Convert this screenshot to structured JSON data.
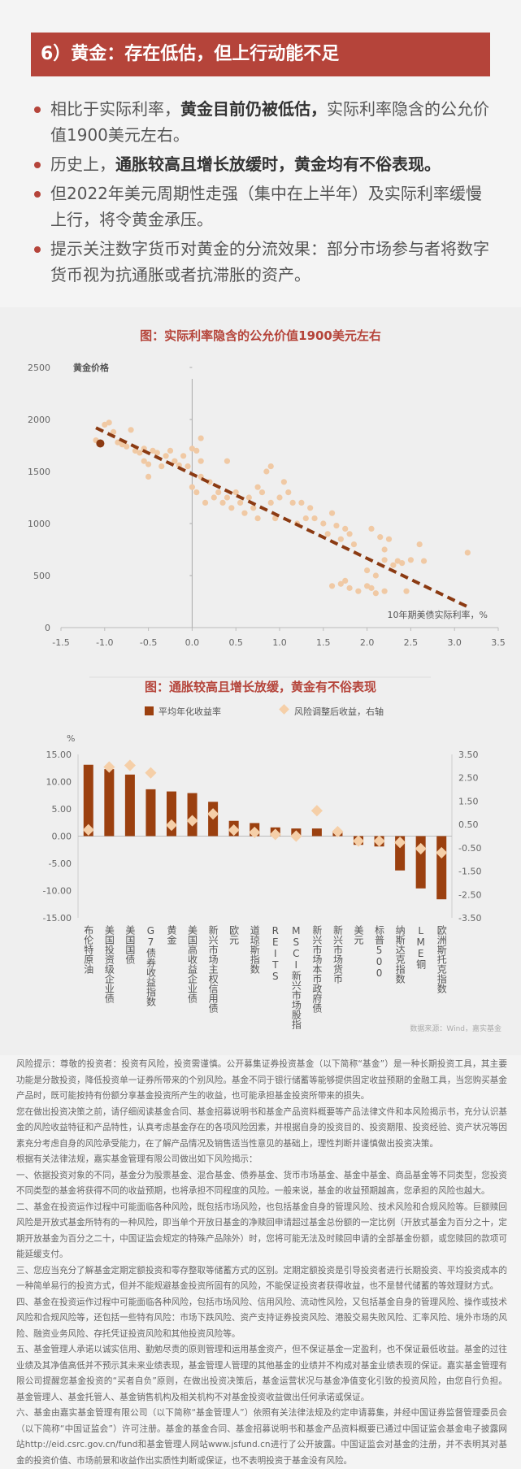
{
  "header": {
    "title": "6）黄金：存在低估，但上行动能不足"
  },
  "bullets": [
    {
      "pre": "相比于实际利率，",
      "bold": "黄金目前仍被低估，",
      "post": "实际利率隐含的公允价值1900美元左右。"
    },
    {
      "pre": "历史上，",
      "bold": "通胀较高且增长放缓时，黄金均有不俗表现。",
      "post": ""
    },
    {
      "pre": "但2022年美元周期性走强（集中在上半年）及实际利率缓慢上行，将令黄金承压。",
      "bold": "",
      "post": ""
    },
    {
      "pre": "提示关注数字货币对黄金的分流效果：部分市场参与者将数字货币视为抗通胀或者抗滞胀的资产。",
      "bold": "",
      "post": ""
    }
  ],
  "chart_data": [
    {
      "type": "scatter",
      "title": "图：实际利率隐含的公允价值1900美元左右",
      "xlabel": "10年期美债实际利率，%",
      "ylabel": "黄金价格",
      "xlim": [
        -1.5,
        3.5
      ],
      "ylim": [
        0,
        2500
      ],
      "xticks": [
        "-1.5",
        "-1.0",
        "-0.5",
        "0.0",
        "0.5",
        "1.0",
        "1.5",
        "2.0",
        "2.5",
        "3.0",
        "3.5"
      ],
      "yticks": [
        "0",
        "500",
        "1000",
        "1500",
        "2000",
        "2500"
      ],
      "colors": {
        "points": "#f0c9a4",
        "highlight": "#8b3a12",
        "trend": "#8b3a12"
      },
      "highlight": [
        -1.05,
        1770
      ],
      "trend": [
        [
          -1.1,
          1920
        ],
        [
          3.15,
          200
        ]
      ],
      "points": [
        [
          -1.1,
          1800
        ],
        [
          -1.0,
          1950
        ],
        [
          -0.95,
          1970
        ],
        [
          -0.9,
          1880
        ],
        [
          -0.85,
          1780
        ],
        [
          -0.8,
          1760
        ],
        [
          -0.75,
          1740
        ],
        [
          -0.7,
          1900
        ],
        [
          -0.65,
          1700
        ],
        [
          -0.6,
          1680
        ],
        [
          -0.55,
          1720
        ],
        [
          -0.55,
          1600
        ],
        [
          -0.5,
          1570
        ],
        [
          -0.5,
          1450
        ],
        [
          -0.45,
          1700
        ],
        [
          -0.4,
          1680
        ],
        [
          -0.35,
          1550
        ],
        [
          -0.3,
          1650
        ],
        [
          -0.25,
          1700
        ],
        [
          -0.2,
          1600
        ],
        [
          -0.15,
          1560
        ],
        [
          -0.1,
          1650
        ],
        [
          -0.05,
          1550
        ],
        [
          0.0,
          1720
        ],
        [
          0.05,
          1700
        ],
        [
          0.1,
          1820
        ],
        [
          0.1,
          1600
        ],
        [
          0.0,
          1350
        ],
        [
          0.05,
          1300
        ],
        [
          0.1,
          1450
        ],
        [
          0.15,
          1200
        ],
        [
          0.2,
          1400
        ],
        [
          0.25,
          1250
        ],
        [
          0.3,
          1300
        ],
        [
          0.35,
          1200
        ],
        [
          0.4,
          1600
        ],
        [
          0.4,
          1250
        ],
        [
          0.45,
          1150
        ],
        [
          0.5,
          1300
        ],
        [
          0.55,
          1200
        ],
        [
          0.6,
          1100
        ],
        [
          0.65,
          1250
        ],
        [
          0.7,
          1150
        ],
        [
          0.75,
          1350
        ],
        [
          0.75,
          1050
        ],
        [
          0.8,
          1300
        ],
        [
          0.85,
          1500
        ],
        [
          0.9,
          1550
        ],
        [
          0.9,
          1200
        ],
        [
          0.95,
          1050
        ],
        [
          1.0,
          1250
        ],
        [
          1.05,
          1400
        ],
        [
          1.1,
          1300
        ],
        [
          1.15,
          1200
        ],
        [
          1.2,
          1000
        ],
        [
          1.25,
          1200
        ],
        [
          1.3,
          1050
        ],
        [
          1.35,
          1150
        ],
        [
          1.4,
          1050
        ],
        [
          1.5,
          1000
        ],
        [
          1.55,
          900
        ],
        [
          1.6,
          1100
        ],
        [
          1.65,
          980
        ],
        [
          1.7,
          850
        ],
        [
          1.75,
          950
        ],
        [
          1.8,
          900
        ],
        [
          1.85,
          800
        ],
        [
          1.6,
          400
        ],
        [
          1.7,
          420
        ],
        [
          1.75,
          450
        ],
        [
          1.8,
          380
        ],
        [
          1.9,
          350
        ],
        [
          2.0,
          400
        ],
        [
          2.05,
          380
        ],
        [
          2.1,
          330
        ],
        [
          2.0,
          550
        ],
        [
          2.1,
          500
        ],
        [
          2.2,
          350
        ],
        [
          2.05,
          950
        ],
        [
          2.15,
          870
        ],
        [
          2.25,
          850
        ],
        [
          2.2,
          650
        ],
        [
          2.3,
          600
        ],
        [
          2.35,
          640
        ],
        [
          2.4,
          620
        ],
        [
          2.5,
          650
        ],
        [
          2.6,
          800
        ],
        [
          2.65,
          640
        ],
        [
          2.45,
          350
        ],
        [
          3.15,
          720
        ],
        [
          2.2,
          750
        ]
      ]
    },
    {
      "type": "bar",
      "title": "图：通胀较高且增长放缓，黄金有不俗表现",
      "yunit": "%",
      "legend": [
        "平均年化收益率",
        "风险调整后收益，右轴"
      ],
      "colors": {
        "bar": "#9b400f",
        "diamond": "#f5cfa8"
      },
      "ylim": [
        -15,
        15
      ],
      "y2lim": [
        -3.5,
        3.5
      ],
      "yticks": [
        "15.00",
        "10.00",
        "5.00",
        "0.00",
        "-5.00",
        "-10.00",
        "-15.00"
      ],
      "y2ticks": [
        "3.50",
        "2.50",
        "1.50",
        "0.50",
        "-0.50",
        "-1.50",
        "-2.50",
        "-3.50"
      ],
      "categories": [
        "布伦特原油",
        "美国投资级企业债",
        "美国国债",
        "G7债券收益指数",
        "黄金",
        "美国高收益企业债",
        "新兴市场主权信用债",
        "欧元",
        "道琼斯指数",
        "REITS",
        "MSCI新兴市场股指",
        "新兴市场本币政府债",
        "新兴市场货币",
        "美元",
        "标普500",
        "纳斯达克指数",
        "LME铜",
        "欧洲斯托克指数"
      ],
      "series": [
        {
          "name": "平均年化收益率",
          "values": [
            13.1,
            12.3,
            11.3,
            8.6,
            8.2,
            7.9,
            6.3,
            2.8,
            2.4,
            1.6,
            1.4,
            1.4,
            0.7,
            -1.6,
            -1.9,
            -6.3,
            -9.6,
            -11.6
          ]
        },
        {
          "name": "风险调整后收益，右轴",
          "values": [
            0.27,
            2.96,
            3.03,
            2.71,
            0.47,
            0.66,
            0.95,
            0.26,
            0.16,
            0.07,
            0.0,
            1.09,
            0.19,
            -0.21,
            -0.21,
            -0.27,
            -0.54,
            -0.71
          ]
        }
      ],
      "source": "数据来源：Wind，嘉实基金"
    }
  ],
  "disclaimer": [
    "风险提示：尊敬的投资者：投资有风险，投资需谨慎。公开募集证券投资基金（以下简称“基金”）是一种长期投资工具，其主要功能是分散投资，降低投资单一证券所带来的个别风险。基金不同于银行储蓄等能够提供固定收益预期的金融工具，当您购买基金产品时，既可能按持有份额分享基金投资所产生的收益，也可能承担基金投资所带来的损失。",
    "您在做出投资决策之前，请仔细阅读基金合同、基金招募说明书和基金产品资料概要等产品法律文件和本风险揭示书，充分认识基金的风险收益特征和产品特性，认真考虑基金存在的各项风险因素，并根据自身的投资目的、投资期限、投资经验、资产状况等因素充分考虑自身的风险承受能力，在了解产品情况及销售适当性意见的基础上，理性判断并谨慎做出投资决策。",
    "根据有关法律法规，嘉实基金管理有限公司做出如下风险揭示：",
    "一、依据投资对象的不同，基金分为股票基金、混合基金、债券基金、货币市场基金、基金中基金、商品基金等不同类型，您投资不同类型的基金将获得不同的收益预期，也将承担不同程度的风险。一般来说，基金的收益预期越高，您承担的风险也越大。",
    "二、基金在投资运作过程中可能面临各种风险，既包括市场风险，也包括基金自身的管理风险、技术风险和合规风险等。巨额赎回风险是开放式基金所特有的一种风险，即当单个开放日基金的净赎回申请超过基金总份额的一定比例（开放式基金为百分之十，定期开放基金为百分之二十，中国证监会规定的特殊产品除外）时，您将可能无法及时赎回申请的全部基金份额，或您赎回的款项可能延缓支付。",
    "三、您应当充分了解基金定期定额投资和零存整取等储蓄方式的区别。定期定额投资是引导投资者进行长期投资、平均投资成本的一种简单易行的投资方式，但并不能规避基金投资所固有的风险，不能保证投资者获得收益，也不是替代储蓄的等效理财方式。",
    "四、基金在投资运作过程中可能面临各种风险，包括市场风险、信用风险、流动性风险，又包括基金自身的管理风险、操作或技术风险和合规风险等，还包括一些特有风险：市场下跌风险、资产支持证券投资风险、港股交易失败风险、汇率风险、境外市场的风险、融资业务风险、存托凭证投资风险和其他投资风险等。",
    "五、基金管理人承诺以诚实信用、勤勉尽责的原则管理和运用基金资产，但不保证基金一定盈利，也不保证最低收益。基金的过往业绩及其净值高低并不预示其未来业绩表现，基金管理人管理的其他基金的业绩并不构成对基金业绩表现的保证。嘉实基金管理有限公司提醒您基金投资的“买者自负”原则，在做出投资决策后，基金运营状况与基金净值变化引致的投资风险，由您自行负担。基金管理人、基金托管人、基金销售机构及相关机构不对基金投资收益做出任何承诺或保证。",
    "六、基金由嘉实基金管理有限公司（以下简称“基金管理人”）依照有关法律法规及约定申请募集，并经中国证券监督管理委员会（以下简称“中国证监会”）许可注册。基金的基金合同、基金招募说明书和基金产品资料概要已通过中国证监会基金电子披露网站http://eid.csrc.gov.cn/fund和基金管理人网站www.jsfund.cn进行了公开披露。中国证监会对基金的注册，并不表明其对基金的投资价值、市场前景和收益作出实质性判断或保证，也不表明投资于基金没有风险。"
  ]
}
